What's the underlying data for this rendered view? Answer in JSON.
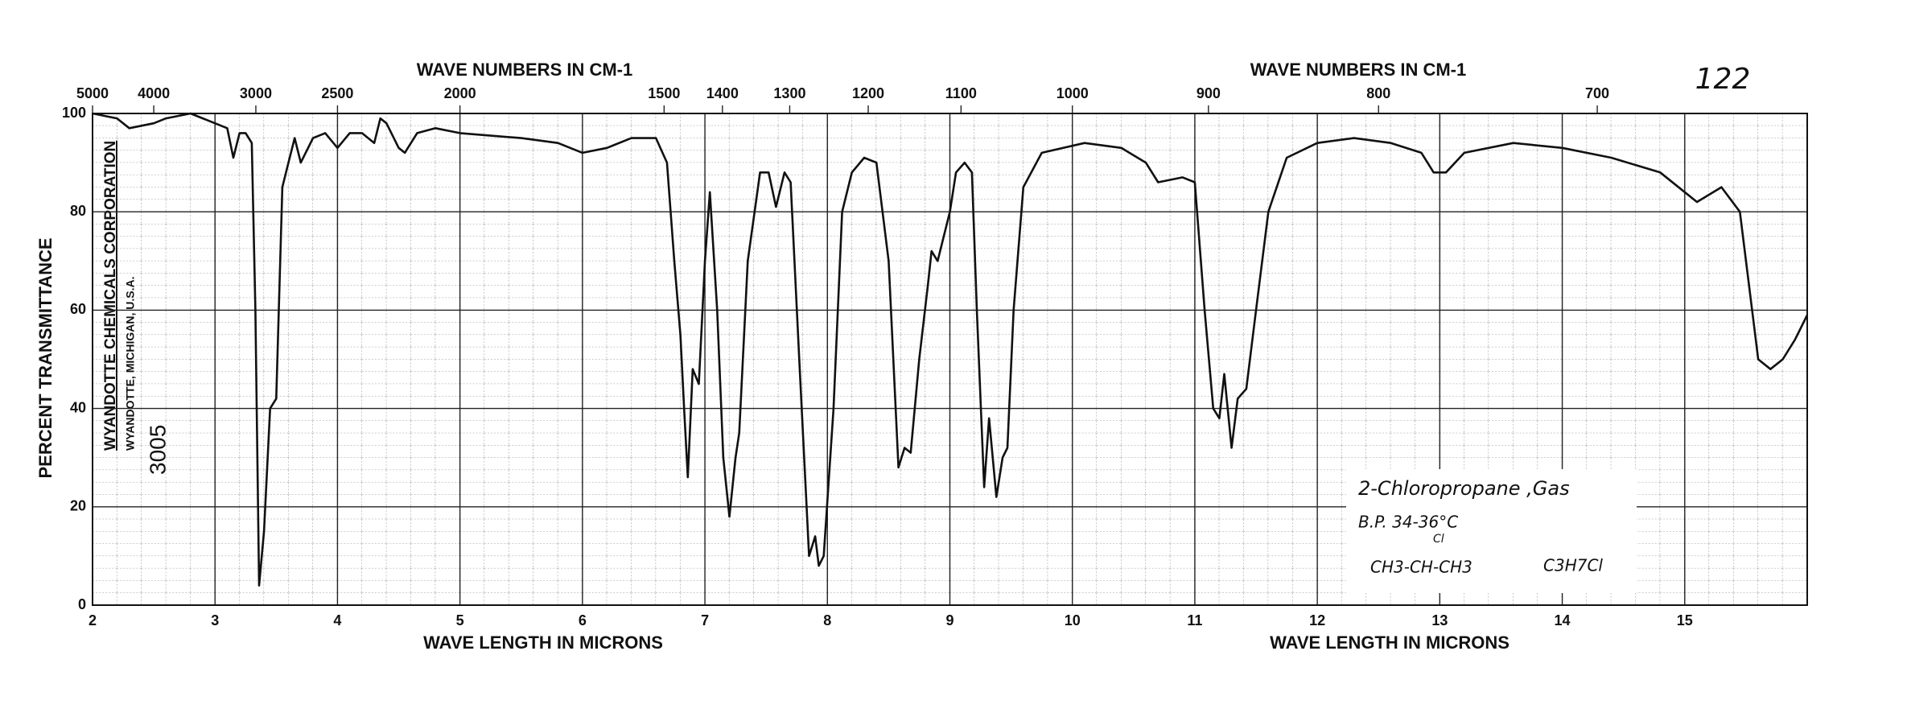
{
  "chart_data": {
    "type": "line",
    "page_number": "122",
    "top_axis_label": "WAVE NUMBERS IN CM-1",
    "x_label": "WAVE LENGTH IN MICRONS",
    "y_label": "PERCENT TRANSMITTANCE",
    "stamp": [
      "WYANDOTTE CHEMICALS CORPORATION",
      "WYANDOTTE, MICHIGAN, U.S.A.",
      "3005"
    ],
    "annotation": [
      "2-Chloropropane ,Gas",
      "B.P. 34-36°C",
      "Cl",
      "CH3-CH-CH3",
      "C3H7Cl"
    ],
    "xlim": [
      2,
      16
    ],
    "ylim": [
      0,
      100
    ],
    "xticks": [
      2,
      3,
      4,
      5,
      6,
      7,
      8,
      9,
      10,
      11,
      12,
      13,
      14,
      15
    ],
    "yticks": [
      0,
      20,
      40,
      60,
      80,
      100
    ],
    "top_ticks": [
      5000,
      4000,
      3000,
      2500,
      2000,
      1500,
      1400,
      1300,
      1200,
      1100,
      1000,
      900,
      800,
      700
    ],
    "grid": true,
    "color": "#111111",
    "x": [
      2.0,
      2.2,
      2.3,
      2.5,
      2.6,
      2.8,
      3.0,
      3.1,
      3.15,
      3.2,
      3.25,
      3.3,
      3.33,
      3.36,
      3.4,
      3.45,
      3.5,
      3.55,
      3.6,
      3.65,
      3.7,
      3.8,
      3.9,
      4.0,
      4.1,
      4.2,
      4.3,
      4.35,
      4.4,
      4.5,
      4.55,
      4.65,
      4.8,
      5.0,
      5.5,
      5.8,
      6.0,
      6.2,
      6.4,
      6.6,
      6.69,
      6.75,
      6.8,
      6.83,
      6.86,
      6.9,
      6.95,
      7.0,
      7.04,
      7.1,
      7.15,
      7.2,
      7.25,
      7.28,
      7.35,
      7.45,
      7.52,
      7.58,
      7.65,
      7.7,
      7.77,
      7.85,
      7.9,
      7.93,
      7.97,
      8.05,
      8.12,
      8.2,
      8.3,
      8.4,
      8.5,
      8.58,
      8.63,
      8.68,
      8.75,
      8.82,
      8.85,
      8.9,
      9.0,
      9.05,
      9.12,
      9.18,
      9.22,
      9.28,
      9.32,
      9.38,
      9.43,
      9.47,
      9.52,
      9.6,
      9.75,
      10.1,
      10.4,
      10.6,
      10.7,
      10.9,
      11.0,
      11.08,
      11.15,
      11.2,
      11.24,
      11.3,
      11.35,
      11.42,
      11.5,
      11.6,
      11.75,
      12.0,
      12.3,
      12.6,
      12.85,
      12.95,
      13.05,
      13.2,
      13.6,
      14.0,
      14.4,
      14.8,
      15.0,
      15.1,
      15.3,
      15.45,
      15.55,
      15.6,
      15.7,
      15.8,
      15.9,
      16.0
    ],
    "values": [
      100,
      99,
      97,
      98,
      99,
      100,
      98,
      97,
      91,
      96,
      96,
      94,
      60,
      4,
      15,
      40,
      42,
      85,
      90,
      95,
      90,
      95,
      96,
      93,
      96,
      96,
      94,
      99,
      98,
      93,
      92,
      96,
      97,
      96,
      95,
      94,
      92,
      93,
      95,
      95,
      90,
      70,
      55,
      40,
      26,
      48,
      45,
      70,
      84,
      60,
      30,
      18,
      30,
      35,
      70,
      88,
      88,
      81,
      88,
      86,
      50,
      10,
      14,
      8,
      10,
      40,
      80,
      88,
      91,
      90,
      70,
      28,
      32,
      31,
      50,
      65,
      72,
      70,
      80,
      88,
      90,
      88,
      60,
      24,
      38,
      22,
      30,
      32,
      60,
      85,
      92,
      94,
      93,
      90,
      86,
      87,
      86,
      60,
      40,
      38,
      47,
      32,
      42,
      44,
      60,
      80,
      91,
      94,
      95,
      94,
      92,
      88,
      88,
      92,
      94,
      93,
      91,
      88,
      84,
      82,
      85,
      80,
      60,
      50,
      48,
      50,
      54,
      59
    ]
  }
}
